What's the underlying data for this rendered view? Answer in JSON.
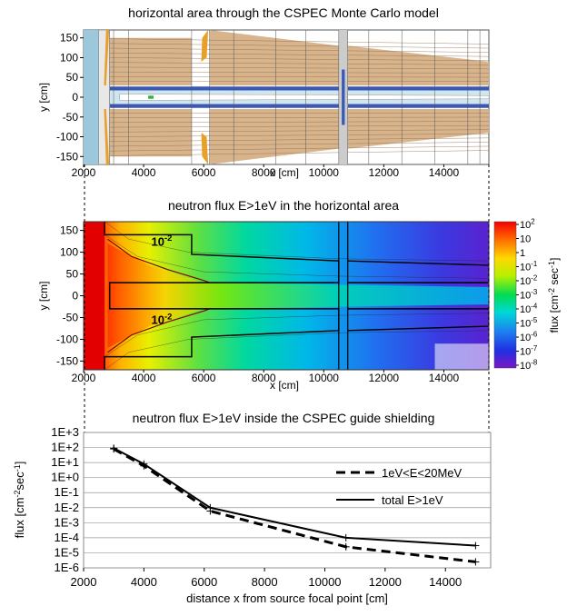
{
  "chart_data": [
    {
      "type": "other",
      "title": "horizontal area through the CSPEC Monte Carlo model",
      "xlabel": "x [cm]",
      "ylabel": "y [cm]",
      "x_ticks": [
        "2000",
        "4000",
        "6000",
        "8000",
        "10000",
        "12000",
        "14000"
      ],
      "y_ticks": [
        "150",
        "100",
        "50",
        "0",
        "-50",
        "-100",
        "-150"
      ],
      "xlim": [
        2000,
        15500
      ],
      "ylim": [
        -170,
        170
      ],
      "colors": {
        "shielding": "#d8b48c",
        "guide": "#3b58b4",
        "light": "#9cc8dc",
        "orange": "#e8a02a",
        "green": "#3bb33b"
      }
    },
    {
      "type": "heatmap",
      "title": "neutron flux E>1eV in the horizontal area",
      "xlabel": "x [cm]",
      "ylabel": "y [cm]",
      "x_ticks": [
        "2000",
        "4000",
        "6000",
        "8000",
        "10000",
        "12000",
        "14000"
      ],
      "y_ticks": [
        "150",
        "100",
        "50",
        "0",
        "-50",
        "-100",
        "-150"
      ],
      "xlim": [
        2000,
        15500
      ],
      "ylim": [
        -170,
        170
      ],
      "contour_labels": [
        {
          "mant": "10",
          "exp": "-2",
          "x": 4600,
          "y": 115
        },
        {
          "mant": "10",
          "exp": "-2",
          "x": 4600,
          "y": -65
        }
      ],
      "colorbar": {
        "label": "flux [cm",
        "label_exp1": "-2",
        "label_mid": " sec",
        "label_exp2": "-1",
        "label_end": "]",
        "ticks": [
          {
            "mant": "10",
            "exp": "2"
          },
          {
            "mant": "10",
            "exp": ""
          },
          {
            "mant": "1",
            "exp": ""
          },
          {
            "mant": "10",
            "exp": "-1"
          },
          {
            "mant": "10",
            "exp": "-2"
          },
          {
            "mant": "10",
            "exp": "-3"
          },
          {
            "mant": "10",
            "exp": "-4"
          },
          {
            "mant": "10",
            "exp": "-5"
          },
          {
            "mant": "10",
            "exp": "-6"
          },
          {
            "mant": "10",
            "exp": "-7"
          },
          {
            "mant": "10",
            "exp": "-8"
          }
        ]
      }
    },
    {
      "type": "line",
      "title": "neutron flux E>1eV inside the CSPEC guide shielding",
      "xlabel": "distance x from source focal point [cm]",
      "ylabel_pre": "flux [cm",
      "ylabel_exp1": "-2",
      "ylabel_mid": "sec",
      "ylabel_exp2": "-1",
      "ylabel_end": "]",
      "x_ticks": [
        "2000",
        "4000",
        "6000",
        "8000",
        "10000",
        "12000",
        "14000"
      ],
      "y_ticks": [
        "1E+3",
        "1E+2",
        "1E+1",
        "1E+0",
        "1E-1",
        "1E-2",
        "1E-3",
        "1E-4",
        "1E-5",
        "1E-6"
      ],
      "xlim": [
        2000,
        15500
      ],
      "ylim_log10": [
        -6,
        3
      ],
      "grid": true,
      "legend_position": "right",
      "series": [
        {
          "name": "1eV<E<20MeV",
          "style": "dashed",
          "x": [
            3000,
            4000,
            6200,
            10700,
            15000
          ],
          "y": [
            80,
            6,
            0.006,
            2.5e-05,
            2.5e-06
          ]
        },
        {
          "name": "total E>1eV",
          "style": "solid",
          "x": [
            3000,
            4000,
            6200,
            10700,
            15000
          ],
          "y": [
            90,
            8,
            0.01,
            0.0001,
            3e-05
          ]
        }
      ]
    }
  ]
}
